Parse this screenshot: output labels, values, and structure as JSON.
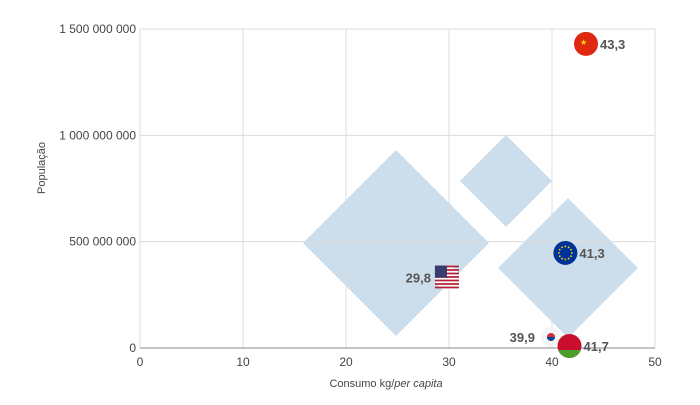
{
  "chart_data": {
    "type": "scatter",
    "title": "",
    "xlabel_prefix": "Consumo kg/",
    "xlabel_italic": "per capita",
    "ylabel": "População",
    "xlim": [
      0,
      50
    ],
    "ylim": [
      0,
      1500000000
    ],
    "xticks": [
      "0",
      "10",
      "20",
      "30",
      "40",
      "50"
    ],
    "yticks": [
      "0",
      "500 000 000",
      "1 000 000 000",
      "1 500 000 000"
    ],
    "grid": true,
    "points": [
      {
        "country": "china",
        "label": "43,3",
        "x": 43.3,
        "y": 1430000000,
        "label_side": "right",
        "colors": [
          "#de2910",
          "#ffde00"
        ]
      },
      {
        "country": "european-union",
        "label": "41,3",
        "x": 41.3,
        "y": 447000000,
        "label_side": "right",
        "colors": [
          "#003399",
          "#ffcc00"
        ]
      },
      {
        "country": "usa",
        "label": "29,8",
        "x": 29.8,
        "y": 331000000,
        "label_side": "left",
        "colors": [
          "#b22234",
          "#3c3b6e"
        ]
      },
      {
        "country": "south-korea",
        "label": "39,9",
        "x": 39.9,
        "y": 52000000,
        "label_side": "left",
        "colors": [
          "#f4f4f4",
          "#cd2e3a"
        ]
      },
      {
        "country": "belarus",
        "label": "41,7",
        "x": 41.7,
        "y": 9400000,
        "label_side": "right",
        "colors": [
          "#c8102e",
          "#4aa02c"
        ]
      }
    ],
    "watermark_color": "#c9dceb"
  }
}
